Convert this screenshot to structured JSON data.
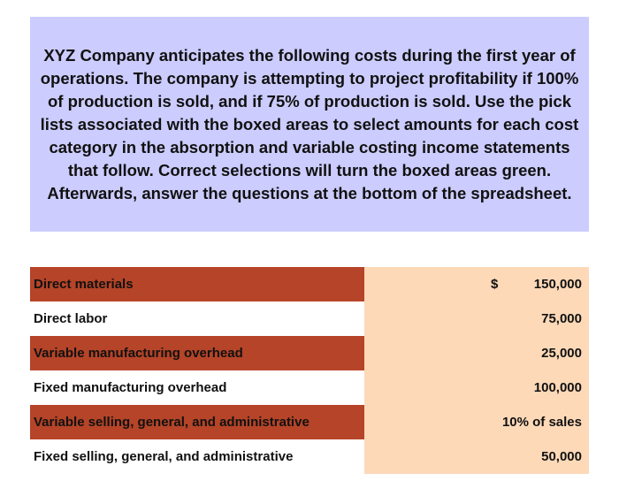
{
  "intro": {
    "text": "XYZ Company anticipates the following costs during the first year of operations.  The company is attempting to project profitability if 100% of production is sold, and if 75% of production is sold.  Use the pick lists associated with the boxed areas to select amounts for each cost category in the absorption and variable costing income statements that follow.  Correct selections will turn the boxed areas green.  Afterwards, answer the questions at the bottom of the spreadsheet."
  },
  "costs": {
    "currency_symbol": "$",
    "rows": [
      {
        "label": "Direct materials",
        "value": "150,000"
      },
      {
        "label": "Direct labor",
        "value": "75,000"
      },
      {
        "label": "Variable manufacturing overhead",
        "value": "25,000"
      },
      {
        "label": "Fixed manufacturing overhead",
        "value": "100,000"
      },
      {
        "label": "Variable selling, general, and administrative",
        "value": "10% of sales"
      },
      {
        "label": "Fixed selling, general, and administrative",
        "value": "50,000"
      }
    ]
  },
  "colors": {
    "intro_bg": "#ccccff",
    "row_label_shade": "#b64428",
    "value_bg": "#fdd9b8"
  }
}
